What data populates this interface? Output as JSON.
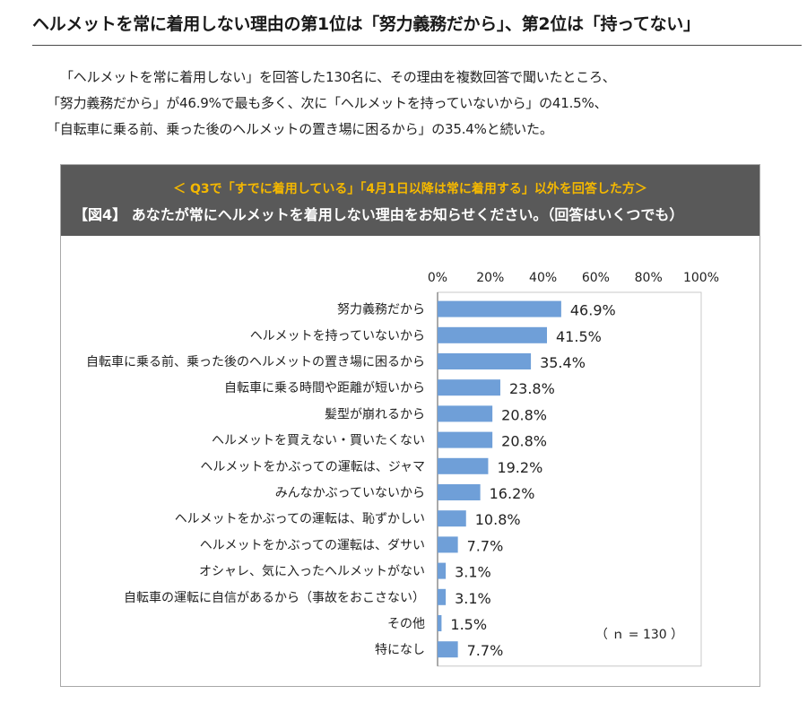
{
  "page": {
    "headline": "ヘルメットを常に着用しない理由の第1位は「努力義務だから」、第2位は「持ってない」",
    "body_lines": [
      "「ヘルメットを常に着用しない」を回答した130名に、その理由を複数回答で聞いたところ、",
      "「努力義務だから」が46.9%で最も多く、次に「ヘルメットを持っていないから」の41.5%、",
      "「自転車に乗る前、乗った後のヘルメットの置き場に困るから」の35.4%と続いた。"
    ]
  },
  "figure": {
    "subtitle": "＜ Q3で「すでに着用している」「4月1日以降は常に着用する」以外を回答した方＞",
    "title": "【図4】 あなたが常にヘルメットを着用しない理由をお知らせください。（回答はいくつでも）",
    "header_bg": "#595959",
    "subtitle_color": "#f5b800"
  },
  "chart_data": {
    "type": "bar",
    "orientation": "horizontal",
    "categories": [
      "努力義務だから",
      "ヘルメットを持っていないから",
      "自転車に乗る前、乗った後のヘルメットの置き場に困るから",
      "自転車に乗る時間や距離が短いから",
      "髪型が崩れるから",
      "ヘルメットを買えない・買いたくない",
      "ヘルメットをかぶっての運転は、ジャマ",
      "みんなかぶっていないから",
      "ヘルメットをかぶっての運転は、恥ずかしい",
      "ヘルメットをかぶっての運転は、ダサい",
      "オシャレ、気に入ったヘルメットがない",
      "自転車の運転に自信があるから（事故をおこさない）",
      "その他",
      "特になし"
    ],
    "values": [
      46.9,
      41.5,
      35.4,
      23.8,
      20.8,
      20.8,
      19.2,
      16.2,
      10.8,
      7.7,
      3.1,
      3.1,
      1.5,
      7.7
    ],
    "value_labels": [
      "46.9%",
      "41.5%",
      "35.4%",
      "23.8%",
      "20.8%",
      "20.8%",
      "19.2%",
      "16.2%",
      "10.8%",
      "7.7%",
      "3.1%",
      "3.1%",
      "1.5%",
      "7.7%"
    ],
    "xlim": [
      0,
      100
    ],
    "xticks": [
      0,
      20,
      40,
      60,
      80,
      100
    ],
    "xtick_labels": [
      "0%",
      "20%",
      "40%",
      "60%",
      "80%",
      "100%"
    ],
    "xaxis_position": "top",
    "grid": false,
    "bar_color": "#6f9fd8",
    "note": "（ ｎ = 130 ）"
  }
}
